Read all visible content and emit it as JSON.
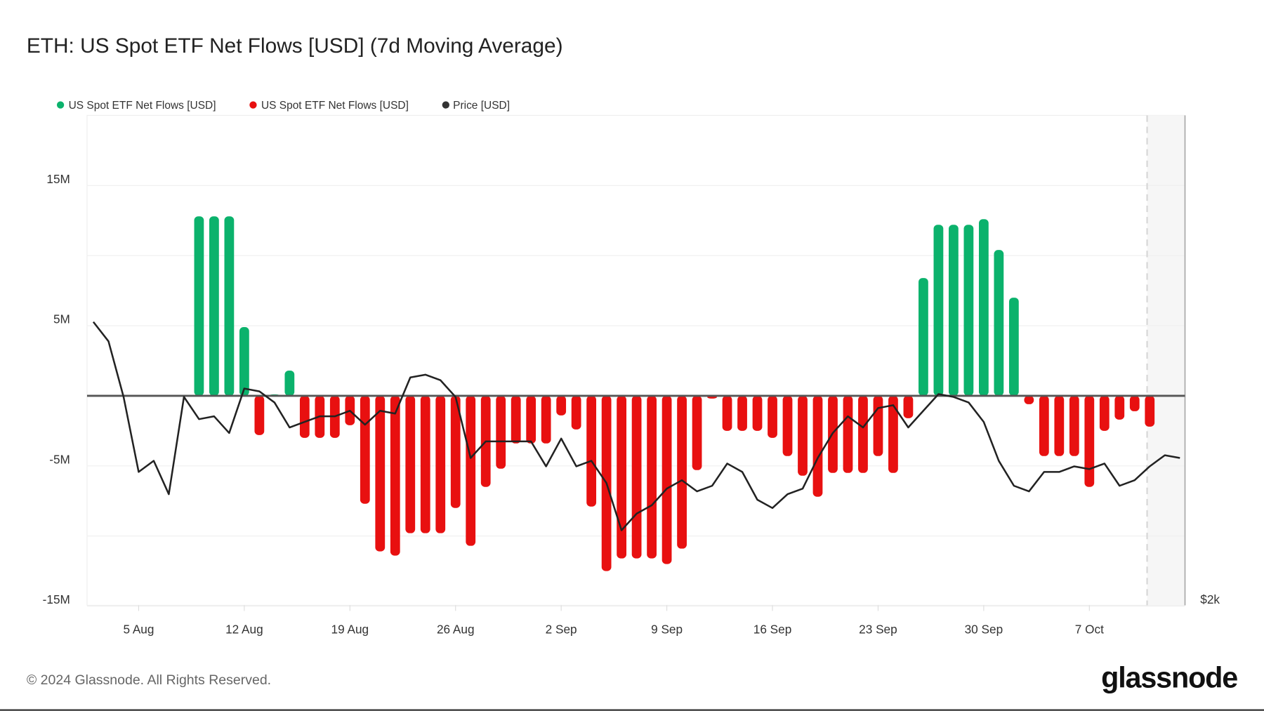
{
  "title": "ETH: US Spot ETF Net Flows [USD] (7d Moving Average)",
  "footer": {
    "copyright": "© 2024 Glassnode. All Rights Reserved.",
    "logo": "glassnode"
  },
  "colors": {
    "positive": "#0bb26c",
    "negative": "#e81010",
    "price": "#222222",
    "zero_line": "#555555"
  },
  "chart_data": {
    "type": "bar",
    "title": "ETH: US Spot ETF Net Flows [USD] (7d Moving Average)",
    "legend": {
      "placement": "top-left",
      "items": [
        {
          "label": "US Spot ETF Net Flows [USD]",
          "color": "#0bb26c"
        },
        {
          "label": "US Spot ETF Net Flows [USD]",
          "color": "#e81010"
        },
        {
          "label": "Price [USD]",
          "color": "#333333"
        }
      ]
    },
    "grid": true,
    "y_left": {
      "unit": "M USD",
      "ylim": [
        -15,
        20
      ],
      "ticks": [
        15,
        5,
        -5,
        -15
      ],
      "tick_labels": [
        "15M",
        "5M",
        "-5M",
        "-15M"
      ]
    },
    "y_right": {
      "scale": "linear",
      "tick_labels": [
        "$2k"
      ]
    },
    "x_axis": {
      "tick_labels": [
        "5 Aug",
        "12 Aug",
        "19 Aug",
        "26 Aug",
        "2 Sep",
        "9 Sep",
        "16 Sep",
        "23 Sep",
        "30 Sep",
        "7 Oct"
      ]
    },
    "series": [
      {
        "type": "bar",
        "dates": [
          "9 Aug",
          "10 Aug",
          "11 Aug",
          "12 Aug",
          "13 Aug",
          "14 Aug",
          "15 Aug",
          "16 Aug",
          "17 Aug",
          "18 Aug",
          "19 Aug",
          "20 Aug",
          "21 Aug",
          "22 Aug",
          "23 Aug",
          "24 Aug",
          "25 Aug",
          "26 Aug",
          "27 Aug",
          "28 Aug",
          "29 Aug",
          "30 Aug",
          "31 Aug",
          "1 Sep",
          "2 Sep",
          "3 Sep",
          "4 Sep",
          "5 Sep",
          "6 Sep",
          "7 Sep",
          "8 Sep",
          "9 Sep",
          "10 Sep",
          "11 Sep",
          "12 Sep",
          "13 Sep",
          "14 Sep",
          "15 Sep",
          "16 Sep",
          "17 Sep",
          "18 Sep",
          "19 Sep",
          "20 Sep",
          "21 Sep",
          "22 Sep",
          "23 Sep",
          "24 Sep",
          "25 Sep",
          "26 Sep",
          "27 Sep",
          "28 Sep",
          "29 Sep",
          "30 Sep",
          "1 Oct",
          "2 Oct",
          "3 Oct",
          "4 Oct",
          "5 Oct",
          "6 Oct",
          "7 Oct",
          "8 Oct",
          "9 Oct",
          "10 Oct",
          "11 Oct"
        ],
        "values": [
          12.8,
          12.8,
          12.8,
          4.9,
          -2.8,
          0.1,
          1.8,
          -3.0,
          -3.0,
          -3.0,
          -2.1,
          -7.7,
          -11.1,
          -11.4,
          -9.8,
          -9.8,
          -9.8,
          -8.0,
          -10.7,
          -6.5,
          -5.2,
          -3.4,
          -3.4,
          -3.4,
          -1.4,
          -2.4,
          -7.9,
          -12.5,
          -11.6,
          -11.6,
          -11.6,
          -12.0,
          -10.9,
          -5.3,
          -0.2,
          -2.5,
          -2.5,
          -2.5,
          -3.0,
          -4.3,
          -5.7,
          -7.2,
          -5.5,
          -5.5,
          -5.5,
          -4.3,
          -5.5,
          -1.6,
          8.4,
          12.2,
          12.2,
          12.2,
          12.6,
          10.4,
          7.0,
          -0.6,
          -4.3,
          -4.3,
          -4.3,
          -6.5,
          -2.5,
          -1.7,
          -1.1,
          -2.2
        ]
      },
      {
        "name": "Price [USD]",
        "type": "line",
        "dates": [
          "2 Aug",
          "3 Aug",
          "4 Aug",
          "5 Aug",
          "6 Aug",
          "7 Aug",
          "8 Aug",
          "9 Aug",
          "10 Aug",
          "11 Aug",
          "12 Aug",
          "13 Aug",
          "14 Aug",
          "15 Aug",
          "16 Aug",
          "17 Aug",
          "18 Aug",
          "19 Aug",
          "20 Aug",
          "21 Aug",
          "22 Aug",
          "23 Aug",
          "24 Aug",
          "25 Aug",
          "26 Aug",
          "27 Aug",
          "28 Aug",
          "29 Aug",
          "30 Aug",
          "31 Aug",
          "1 Sep",
          "2 Sep",
          "3 Sep",
          "4 Sep",
          "5 Sep",
          "6 Sep",
          "7 Sep",
          "8 Sep",
          "9 Sep",
          "10 Sep",
          "11 Sep",
          "12 Sep",
          "13 Sep",
          "14 Sep",
          "15 Sep",
          "16 Sep",
          "17 Sep",
          "18 Sep",
          "19 Sep",
          "20 Sep",
          "21 Sep",
          "22 Sep",
          "23 Sep",
          "24 Sep",
          "25 Sep",
          "26 Sep",
          "27 Sep",
          "28 Sep",
          "29 Sep",
          "30 Sep",
          "1 Oct",
          "2 Oct",
          "3 Oct",
          "4 Oct",
          "5 Oct",
          "6 Oct",
          "7 Oct",
          "8 Oct",
          "9 Oct",
          "10 Oct",
          "11 Oct",
          "12 Oct",
          "13 Oct"
        ],
        "values": [
          3020,
          2950,
          2750,
          2480,
          2520,
          2400,
          2750,
          2670,
          2680,
          2620,
          2780,
          2770,
          2730,
          2640,
          2660,
          2680,
          2680,
          2700,
          2650,
          2700,
          2690,
          2820,
          2830,
          2810,
          2750,
          2530,
          2590,
          2590,
          2590,
          2590,
          2500,
          2600,
          2500,
          2520,
          2440,
          2270,
          2330,
          2360,
          2420,
          2450,
          2410,
          2430,
          2510,
          2480,
          2380,
          2350,
          2400,
          2420,
          2530,
          2620,
          2680,
          2640,
          2710,
          2720,
          2640,
          2700,
          2760,
          2750,
          2730,
          2660,
          2520,
          2430,
          2410,
          2480,
          2480,
          2500,
          2490,
          2510,
          2430,
          2450,
          2500,
          2540,
          2530
        ]
      }
    ]
  }
}
